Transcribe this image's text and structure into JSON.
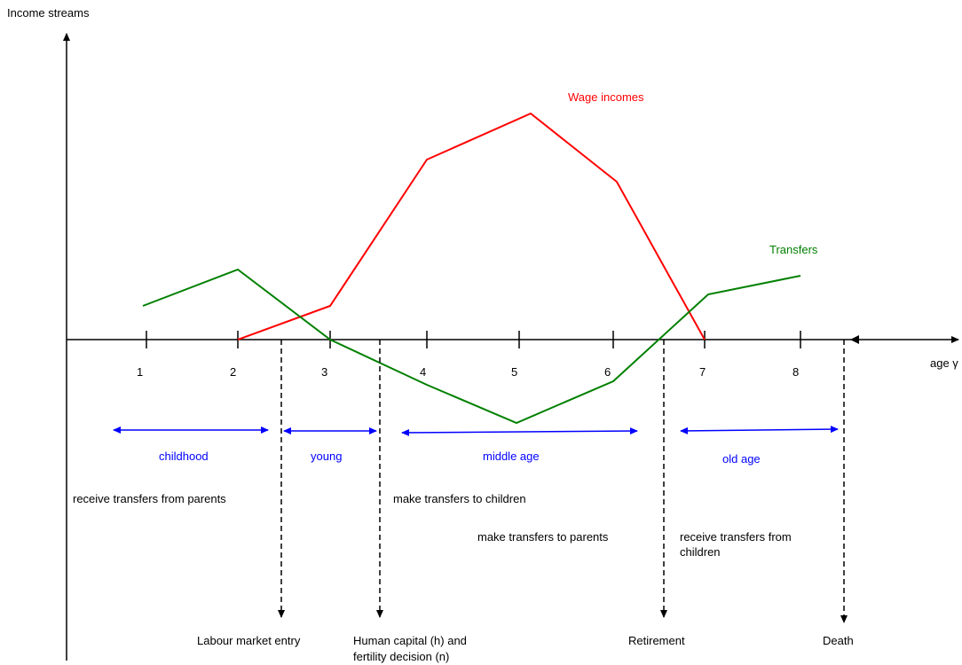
{
  "y_axis_label": "Income streams",
  "x_axis_label": "age γ",
  "ticks": [
    "1",
    "2",
    "3",
    "4",
    "5",
    "6",
    "7",
    "8"
  ],
  "series": [
    {
      "name": "Wage incomes",
      "color": "#ff0000"
    },
    {
      "name": "Transfers",
      "color": "#008000"
    }
  ],
  "phases": [
    {
      "label": "childhood"
    },
    {
      "label": "young"
    },
    {
      "label": "middle age"
    },
    {
      "label": "old age"
    }
  ],
  "phase_color": "#0000ff",
  "notes": [
    "receive transfers from parents",
    "make transfers to children",
    "make transfers to parents",
    "receive transfers from children"
  ],
  "events": {
    "labour_market_entry": "Labour market entry",
    "human_capital_line1": "Human capital (h) and",
    "human_capital_line2": "fertility decision (n)",
    "retirement": "Retirement",
    "death": "Death"
  }
}
